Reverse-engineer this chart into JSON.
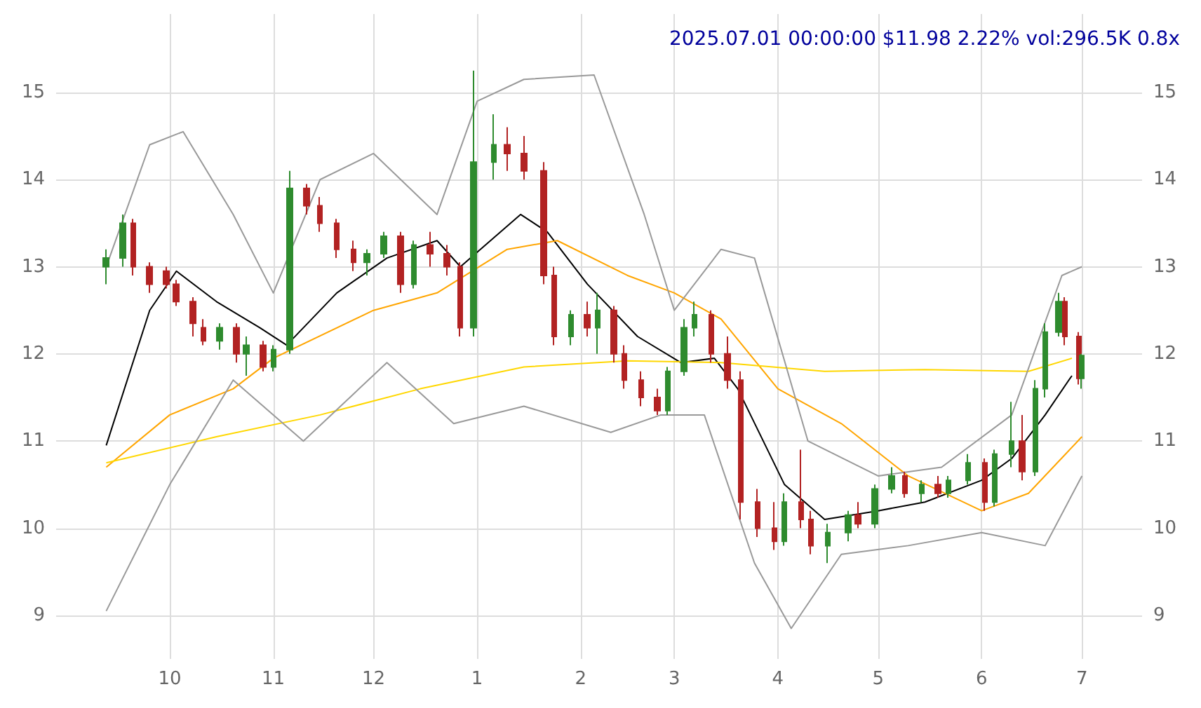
{
  "chart_data": {
    "type": "candlestick",
    "title": "2025.07.01 00:00:00 $11.98 2.22% vol:296.5K 0.8x",
    "grid": true,
    "marker": "none",
    "xlim": [
      "2024-08-28",
      "2025-07-19"
    ],
    "xticks": [
      {
        "value": "2024-10-01",
        "label": "10"
      },
      {
        "value": "2024-11-01",
        "label": "11"
      },
      {
        "value": "2024-12-01",
        "label": "12"
      },
      {
        "value": "2025-01-01",
        "label": "1"
      },
      {
        "value": "2025-02-01",
        "label": "2"
      },
      {
        "value": "2025-03-01",
        "label": "3"
      },
      {
        "value": "2025-04-01",
        "label": "4"
      },
      {
        "value": "2025-05-01",
        "label": "5"
      },
      {
        "value": "2025-06-01",
        "label": "6"
      },
      {
        "value": "2025-07-01",
        "label": "7"
      }
    ],
    "ylim": [
      8.5,
      15.9
    ],
    "yticks": [
      9,
      10,
      11,
      12,
      13,
      14,
      15
    ],
    "y2lim": [
      8.5,
      15.9
    ],
    "y2ticks": [
      9,
      10,
      11,
      12,
      13,
      14,
      15
    ],
    "x": [
      "2024-09-12",
      "2024-09-17",
      "2024-09-20",
      "2024-09-25",
      "2024-09-30",
      "2024-10-03",
      "2024-10-08",
      "2024-10-11",
      "2024-10-16",
      "2024-10-21",
      "2024-10-24",
      "2024-10-29",
      "2024-11-01",
      "2024-11-06",
      "2024-11-11",
      "2024-11-15",
      "2024-11-20",
      "2024-11-25",
      "2024-11-29",
      "2024-12-04",
      "2024-12-09",
      "2024-12-13",
      "2024-12-18",
      "2024-12-23",
      "2024-12-27",
      "2024-12-31",
      "2025-01-06",
      "2025-01-10",
      "2025-01-15",
      "2025-01-21",
      "2025-01-24",
      "2025-01-29",
      "2025-02-03",
      "2025-02-06",
      "2025-02-11",
      "2025-02-14",
      "2025-02-19",
      "2025-02-24",
      "2025-02-27",
      "2025-03-04",
      "2025-03-07",
      "2025-03-12",
      "2025-03-17",
      "2025-03-21",
      "2025-03-26",
      "2025-03-31",
      "2025-04-03",
      "2025-04-08",
      "2025-04-11",
      "2025-04-16",
      "2025-04-22",
      "2025-04-25",
      "2025-04-30",
      "2025-05-05",
      "2025-05-09",
      "2025-05-14",
      "2025-05-19",
      "2025-05-22",
      "2025-05-28",
      "2025-06-02",
      "2025-06-05",
      "2025-06-10",
      "2025-06-13",
      "2025-06-17",
      "2025-06-20",
      "2025-06-24",
      "2025-06-26",
      "2025-06-30",
      "2025-07-01"
    ],
    "ohlc": [
      [
        13.0,
        13.2,
        12.8,
        13.1
      ],
      [
        13.1,
        13.6,
        13.0,
        13.5
      ],
      [
        13.5,
        13.55,
        12.9,
        13.0
      ],
      [
        13.0,
        13.05,
        12.7,
        12.8
      ],
      [
        12.95,
        13.0,
        12.75,
        12.8
      ],
      [
        12.8,
        12.85,
        12.55,
        12.6
      ],
      [
        12.6,
        12.65,
        12.2,
        12.35
      ],
      [
        12.3,
        12.4,
        12.1,
        12.15
      ],
      [
        12.15,
        12.35,
        12.05,
        12.3
      ],
      [
        12.3,
        12.35,
        11.9,
        12.0
      ],
      [
        12.0,
        12.2,
        11.75,
        12.1
      ],
      [
        12.1,
        12.15,
        11.8,
        11.85
      ],
      [
        11.85,
        12.1,
        11.8,
        12.05
      ],
      [
        12.05,
        14.1,
        12.0,
        13.9
      ],
      [
        13.9,
        13.95,
        13.6,
        13.7
      ],
      [
        13.7,
        13.8,
        13.4,
        13.5
      ],
      [
        13.5,
        13.55,
        13.1,
        13.2
      ],
      [
        13.2,
        13.3,
        12.95,
        13.05
      ],
      [
        13.05,
        13.2,
        12.9,
        13.15
      ],
      [
        13.15,
        13.4,
        13.1,
        13.35
      ],
      [
        13.35,
        13.4,
        12.7,
        12.8
      ],
      [
        12.8,
        13.3,
        12.75,
        13.25
      ],
      [
        13.25,
        13.4,
        13.0,
        13.15
      ],
      [
        13.15,
        13.25,
        12.9,
        13.0
      ],
      [
        13.0,
        13.05,
        12.2,
        12.3
      ],
      [
        12.3,
        15.25,
        12.2,
        14.2
      ],
      [
        14.2,
        14.75,
        14.0,
        14.4
      ],
      [
        14.4,
        14.6,
        14.1,
        14.3
      ],
      [
        14.3,
        14.5,
        14.0,
        14.1
      ],
      [
        14.1,
        14.2,
        12.8,
        12.9
      ],
      [
        12.9,
        13.0,
        12.1,
        12.2
      ],
      [
        12.2,
        12.5,
        12.1,
        12.45
      ],
      [
        12.45,
        12.6,
        12.2,
        12.3
      ],
      [
        12.3,
        12.7,
        12.0,
        12.5
      ],
      [
        12.5,
        12.55,
        11.9,
        12.0
      ],
      [
        12.0,
        12.1,
        11.6,
        11.7
      ],
      [
        11.7,
        11.8,
        11.4,
        11.5
      ],
      [
        11.5,
        11.6,
        11.3,
        11.35
      ],
      [
        11.35,
        11.85,
        11.3,
        11.8
      ],
      [
        11.8,
        12.4,
        11.75,
        12.3
      ],
      [
        12.3,
        12.6,
        12.2,
        12.45
      ],
      [
        12.45,
        12.5,
        11.9,
        12.0
      ],
      [
        12.0,
        12.2,
        11.6,
        11.7
      ],
      [
        11.7,
        11.8,
        10.1,
        10.3
      ],
      [
        10.3,
        10.45,
        9.9,
        10.0
      ],
      [
        10.0,
        10.3,
        9.75,
        9.85
      ],
      [
        9.85,
        10.4,
        9.8,
        10.3
      ],
      [
        10.3,
        10.9,
        10.0,
        10.1
      ],
      [
        10.1,
        10.2,
        9.7,
        9.8
      ],
      [
        9.8,
        10.05,
        9.6,
        9.95
      ],
      [
        9.95,
        10.2,
        9.85,
        10.15
      ],
      [
        10.15,
        10.3,
        10.0,
        10.05
      ],
      [
        10.05,
        10.5,
        10.0,
        10.45
      ],
      [
        10.45,
        10.7,
        10.4,
        10.6
      ],
      [
        10.6,
        10.65,
        10.35,
        10.4
      ],
      [
        10.4,
        10.55,
        10.3,
        10.5
      ],
      [
        10.5,
        10.6,
        10.35,
        10.4
      ],
      [
        10.4,
        10.6,
        10.35,
        10.55
      ],
      [
        10.55,
        10.85,
        10.5,
        10.75
      ],
      [
        10.75,
        10.8,
        10.2,
        10.3
      ],
      [
        10.3,
        10.9,
        10.25,
        10.85
      ],
      [
        10.85,
        11.45,
        10.7,
        11.0
      ],
      [
        11.0,
        11.3,
        10.55,
        10.65
      ],
      [
        10.65,
        11.7,
        10.6,
        11.6
      ],
      [
        11.6,
        12.35,
        11.5,
        12.25
      ],
      [
        12.25,
        12.7,
        12.2,
        12.6
      ],
      [
        12.6,
        12.65,
        12.1,
        12.2
      ],
      [
        12.2,
        12.25,
        11.65,
        11.72
      ],
      [
        11.72,
        12.0,
        11.6,
        11.98
      ]
    ],
    "colors": [
      "#2e8b2e",
      "#2e8b2e",
      "#b22222",
      "#b22222",
      "#b22222",
      "#b22222",
      "#b22222",
      "#b22222",
      "#2e8b2e",
      "#b22222",
      "#2e8b2e",
      "#b22222",
      "#2e8b2e",
      "#2e8b2e",
      "#b22222",
      "#b22222",
      "#b22222",
      "#b22222",
      "#2e8b2e",
      "#2e8b2e",
      "#b22222",
      "#2e8b2e",
      "#b22222",
      "#b22222",
      "#b22222",
      "#2e8b2e",
      "#2e8b2e",
      "#b22222",
      "#b22222",
      "#b22222",
      "#b22222",
      "#2e8b2e",
      "#b22222",
      "#2e8b2e",
      "#b22222",
      "#b22222",
      "#b22222",
      "#b22222",
      "#2e8b2e",
      "#2e8b2e",
      "#2e8b2e",
      "#b22222",
      "#b22222",
      "#b22222",
      "#b22222",
      "#b22222",
      "#2e8b2e",
      "#b22222",
      "#b22222",
      "#2e8b2e",
      "#2e8b2e",
      "#b22222",
      "#2e8b2e",
      "#2e8b2e",
      "#b22222",
      "#2e8b2e",
      "#b22222",
      "#2e8b2e",
      "#2e8b2e",
      "#b22222",
      "#2e8b2e",
      "#2e8b2e",
      "#b22222",
      "#2e8b2e",
      "#2e8b2e",
      "#2e8b2e",
      "#b22222",
      "#b22222",
      "#2e8b2e"
    ],
    "series": [
      {
        "type": "line",
        "color": "#000000",
        "x": [
          "2024-09-12",
          "2024-09-25",
          "2024-10-03",
          "2024-10-15",
          "2024-10-28",
          "2024-11-05",
          "2024-11-20",
          "2024-12-05",
          "2024-12-20",
          "2024-12-27",
          "2025-01-05",
          "2025-01-14",
          "2025-01-22",
          "2025-02-03",
          "2025-02-18",
          "2025-03-03",
          "2025-03-13",
          "2025-03-20",
          "2025-04-03",
          "2025-04-15",
          "2025-05-01",
          "2025-05-15",
          "2025-06-01",
          "2025-06-10",
          "2025-06-20",
          "2025-06-28"
        ],
        "values": [
          10.95,
          12.5,
          12.95,
          12.6,
          12.3,
          12.1,
          12.7,
          13.1,
          13.3,
          13.0,
          13.3,
          13.6,
          13.4,
          12.8,
          12.2,
          11.9,
          11.95,
          11.6,
          10.5,
          10.1,
          10.2,
          10.3,
          10.55,
          10.8,
          11.3,
          11.75
        ]
      },
      {
        "type": "line",
        "color": "#ffa500",
        "x": [
          "2024-09-12",
          "2024-10-01",
          "2024-10-20",
          "2024-11-01",
          "2024-12-01",
          "2024-12-20",
          "2025-01-10",
          "2025-01-25",
          "2025-02-15",
          "2025-03-01",
          "2025-03-15",
          "2025-04-01",
          "2025-04-20",
          "2025-05-10",
          "2025-06-01",
          "2025-06-15",
          "2025-07-01"
        ],
        "values": [
          10.7,
          11.3,
          11.6,
          11.95,
          12.5,
          12.7,
          13.2,
          13.3,
          12.9,
          12.7,
          12.4,
          11.6,
          11.2,
          10.6,
          10.2,
          10.4,
          11.05
        ]
      },
      {
        "type": "line",
        "color": "#ffd700",
        "x": [
          "2024-09-12",
          "2024-10-15",
          "2024-11-15",
          "2024-12-15",
          "2025-01-15",
          "2025-02-15",
          "2025-03-15",
          "2025-04-15",
          "2025-05-15",
          "2025-06-15",
          "2025-06-28"
        ],
        "values": [
          10.75,
          11.05,
          11.3,
          11.6,
          11.85,
          11.92,
          11.9,
          11.8,
          11.82,
          11.8,
          11.95
        ]
      },
      {
        "type": "line",
        "color": "#999999",
        "x": [
          "2024-09-12",
          "2024-09-25",
          "2024-10-05",
          "2024-10-20",
          "2024-11-01",
          "2024-11-15",
          "2024-12-01",
          "2024-12-20",
          "2025-01-01",
          "2025-01-15",
          "2025-02-05",
          "2025-02-20",
          "2025-03-01",
          "2025-03-15",
          "2025-03-25",
          "2025-04-10",
          "2025-05-01",
          "2025-05-20",
          "2025-06-10",
          "2025-06-25",
          "2025-07-01"
        ],
        "values": [
          13.0,
          14.4,
          14.55,
          13.6,
          12.7,
          14.0,
          14.3,
          13.6,
          14.9,
          15.15,
          15.2,
          13.6,
          12.5,
          13.2,
          13.1,
          11.0,
          10.6,
          10.7,
          11.3,
          12.9,
          13.0
        ]
      },
      {
        "type": "line",
        "color": "#999999",
        "x": [
          "2024-09-12",
          "2024-10-01",
          "2024-10-20",
          "2024-11-10",
          "2024-12-05",
          "2024-12-25",
          "2025-01-15",
          "2025-02-10",
          "2025-02-25",
          "2025-03-10",
          "2025-03-25",
          "2025-04-05",
          "2025-04-20",
          "2025-05-10",
          "2025-06-01",
          "2025-06-20",
          "2025-07-01"
        ],
        "values": [
          9.05,
          10.5,
          11.7,
          11.0,
          11.9,
          11.2,
          11.4,
          11.1,
          11.3,
          11.3,
          9.6,
          8.85,
          9.7,
          9.8,
          9.95,
          9.8,
          10.6
        ]
      }
    ]
  }
}
